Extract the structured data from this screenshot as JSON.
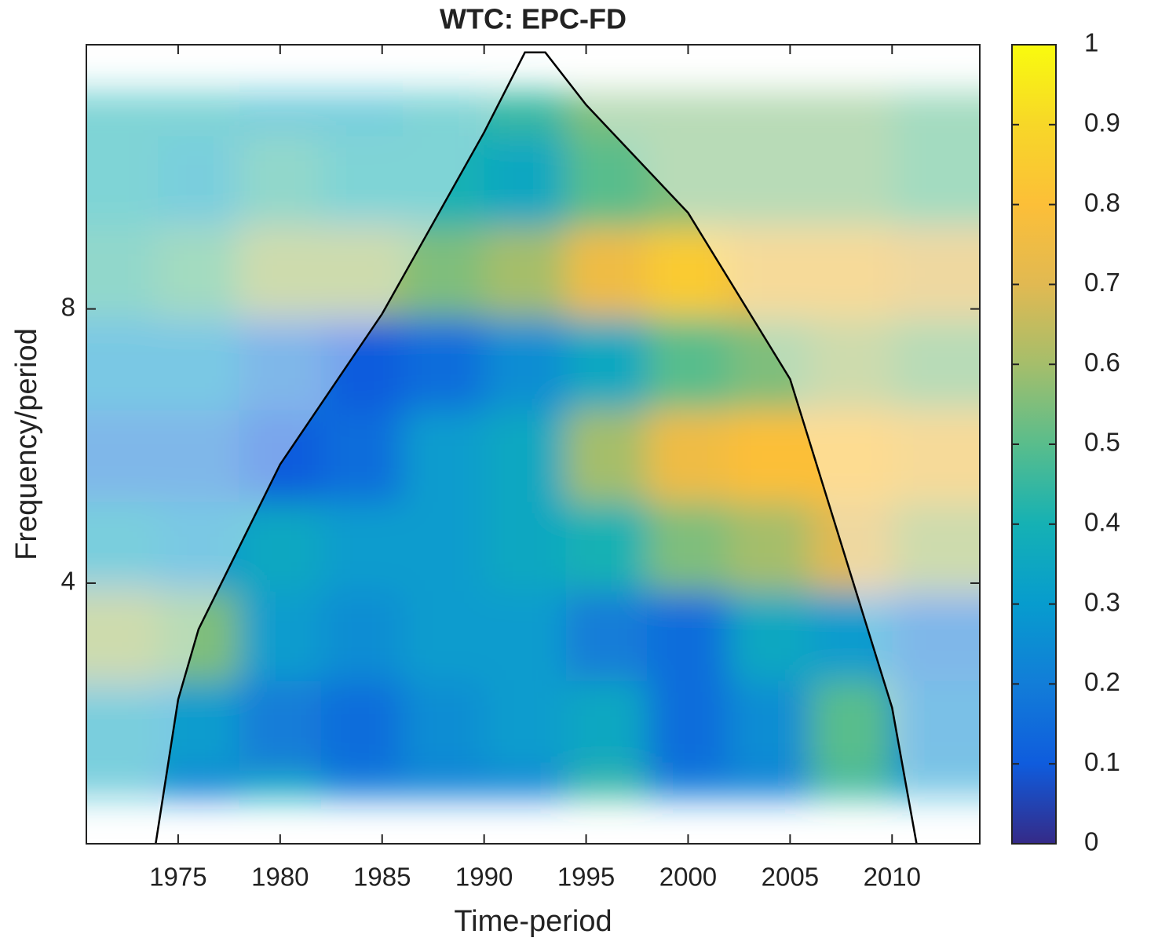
{
  "chart_data": {
    "type": "heatmap",
    "title": "WTC: EPC-FD",
    "x_label": "Time-period",
    "y_label": "Frequency/period",
    "x": [
      1972,
      1976,
      1980,
      1984,
      1988,
      1992,
      1996,
      2000,
      2004,
      2008,
      2012
    ],
    "y": [
      2.2,
      2.8,
      3.5,
      4.4,
      5.5,
      7,
      8.8,
      11,
      14
    ],
    "values": [
      [
        0.35,
        0.2,
        0.35,
        0.2,
        0.2,
        0.2,
        0.45,
        0.2,
        0.2,
        0.45,
        0.3
      ],
      [
        0.35,
        0.3,
        0.2,
        0.15,
        0.25,
        0.3,
        0.35,
        0.15,
        0.25,
        0.5,
        0.25
      ],
      [
        0.6,
        0.55,
        0.3,
        0.25,
        0.3,
        0.3,
        0.2,
        0.15,
        0.35,
        0.3,
        0.2
      ],
      [
        0.35,
        0.3,
        0.35,
        0.3,
        0.3,
        0.35,
        0.4,
        0.55,
        0.6,
        0.7,
        0.6
      ],
      [
        0.2,
        0.2,
        0.1,
        0.15,
        0.3,
        0.35,
        0.6,
        0.75,
        0.8,
        0.8,
        0.75
      ],
      [
        0.3,
        0.3,
        0.2,
        0.1,
        0.15,
        0.25,
        0.35,
        0.5,
        0.55,
        0.6,
        0.55
      ],
      [
        0.45,
        0.5,
        0.6,
        0.6,
        0.55,
        0.6,
        0.75,
        0.85,
        0.75,
        0.75,
        0.7
      ],
      [
        0.4,
        0.35,
        0.45,
        0.4,
        0.4,
        0.35,
        0.5,
        0.55,
        0.55,
        0.55,
        0.5
      ],
      [
        0.4,
        0.4,
        0.35,
        0.35,
        0.4,
        0.45,
        0.55,
        0.55,
        0.55,
        0.55,
        0.5
      ]
    ],
    "cone": {
      "x": [
        1973.9,
        1975,
        1976,
        1980,
        1985,
        1990,
        1992,
        1993,
        1995,
        2000,
        2005,
        2010,
        2011.2
      ],
      "y": [
        2.07,
        2.98,
        3.56,
        5.4,
        7.9,
        12.5,
        15.3,
        15.3,
        13.4,
        10.2,
        6.7,
        2.92,
        2.07
      ]
    },
    "xlim": [
      1970.5,
      2014.3
    ],
    "xticks": [
      1975,
      1980,
      1985,
      1990,
      1995,
      2000,
      2005,
      2010
    ],
    "ylim": [
      2.07,
      15.6
    ],
    "yticks": [
      4,
      8
    ],
    "y_scale": "log",
    "colorbar": {
      "lim": [
        0,
        1
      ],
      "ticks": [
        0,
        0.1,
        0.2,
        0.3,
        0.4,
        0.5,
        0.6,
        0.7,
        0.8,
        0.9,
        1
      ]
    },
    "colormap": [
      "#352a87",
      "#0f5cdd",
      "#127dd8",
      "#079cce",
      "#15b1b4",
      "#59bd8c",
      "#a5be6b",
      "#e1b952",
      "#fcbf38",
      "#f7d728",
      "#f9fb0e"
    ]
  }
}
